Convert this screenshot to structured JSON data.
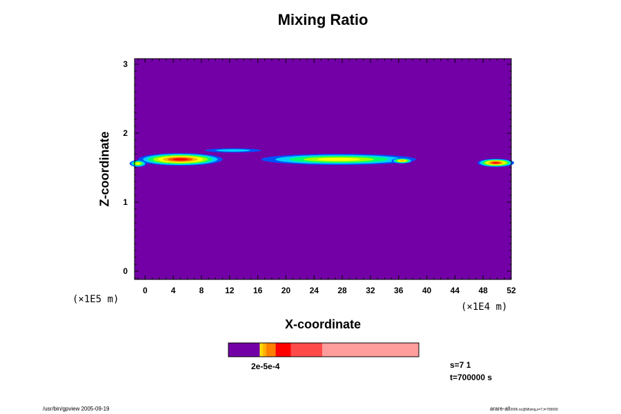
{
  "chart_data": {
    "type": "heatmap",
    "title": "Mixing Ratio",
    "xlabel": "X-coordinate",
    "ylabel": "Z-coordinate",
    "x_unit": "(×1E4 m)",
    "y_unit": "(×1E5 m)",
    "xlim": [
      -1.5,
      52
    ],
    "ylim": [
      -0.12,
      3.08
    ],
    "x_ticks": [
      "0",
      "4",
      "8",
      "12",
      "16",
      "20",
      "24",
      "28",
      "32",
      "36",
      "40",
      "44",
      "48",
      "52"
    ],
    "y_ticks": [
      "0",
      "1",
      "2",
      "3"
    ],
    "background_level_color": "#7300a6",
    "levels_colors": [
      "#7300a6",
      "#0050ff",
      "#00d0ff",
      "#00ff70",
      "#a0ff00",
      "#ffff00",
      "#ffb000",
      "#ff5000",
      "#ff0000"
    ],
    "features": [
      {
        "x_center": 5.0,
        "x_halfwidth": 6.0,
        "z_center": 1.62,
        "z_halfwidth": 0.09,
        "peak": 8
      },
      {
        "x_center": 12.5,
        "x_halfwidth": 4.0,
        "z_center": 1.75,
        "z_halfwidth": 0.03,
        "peak": 2
      },
      {
        "x_center": 27.5,
        "x_halfwidth": 11.0,
        "z_center": 1.62,
        "z_halfwidth": 0.08,
        "peak": 5
      },
      {
        "x_center": 36.5,
        "x_halfwidth": 1.5,
        "z_center": 1.6,
        "z_halfwidth": 0.04,
        "peak": 6
      },
      {
        "x_center": 49.8,
        "x_halfwidth": 2.6,
        "z_center": 1.57,
        "z_halfwidth": 0.06,
        "peak": 8
      },
      {
        "x_center": -1.0,
        "x_halfwidth": 1.2,
        "z_center": 1.56,
        "z_halfwidth": 0.05,
        "peak": 5
      }
    ],
    "colorbar": {
      "segments": [
        {
          "color": "#7300a6",
          "width_frac": 0.165
        },
        {
          "color": "#ffff00",
          "width_frac": 0.006
        },
        {
          "color": "#ffd000",
          "width_frac": 0.012
        },
        {
          "color": "#ffb000",
          "width_frac": 0.015
        },
        {
          "color": "#ff8000",
          "width_frac": 0.05
        },
        {
          "color": "#ff0000",
          "width_frac": 0.08
        },
        {
          "color": "#ff4a4a",
          "width_frac": 0.165
        },
        {
          "color": "#ff9c9c",
          "width_frac": 0.507
        }
      ],
      "label": "2e-5e-4"
    }
  },
  "info": {
    "step": "s=7 1",
    "time": "t=700000 s",
    "footer_left": "/usr/bin/gpview 2005-09-19",
    "footer_right_main": "arare-all",
    "footer_right_sub": "2006.nc@Mixing,x=7,t=700000"
  }
}
